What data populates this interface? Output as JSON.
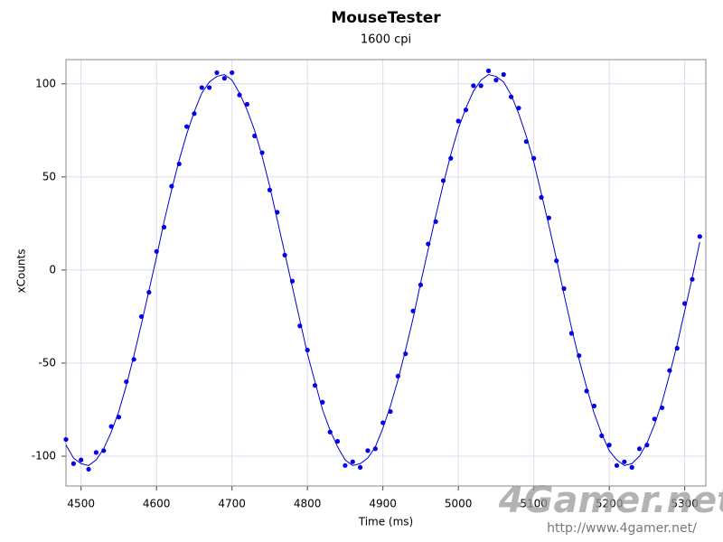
{
  "chart_data": {
    "type": "scatter",
    "title": "MouseTester",
    "subtitle": "1600 cpi",
    "x_label": "Time (ms)",
    "y_label": "xCounts",
    "x": [
      4480,
      4490,
      4500,
      4510,
      4520,
      4530,
      4540,
      4550,
      4560,
      4570,
      4580,
      4590,
      4600,
      4610,
      4620,
      4630,
      4640,
      4650,
      4660,
      4670,
      4680,
      4690,
      4700,
      4710,
      4720,
      4730,
      4740,
      4750,
      4760,
      4770,
      4780,
      4790,
      4800,
      4810,
      4820,
      4830,
      4840,
      4850,
      4860,
      4870,
      4880,
      4890,
      4900,
      4910,
      4920,
      4930,
      4940,
      4950,
      4960,
      4970,
      4980,
      4990,
      5000,
      5010,
      5020,
      5030,
      5040,
      5050,
      5060,
      5070,
      5080,
      5090,
      5100,
      5110,
      5120,
      5130,
      5140,
      5150,
      5160,
      5170,
      5180,
      5190,
      5200,
      5210,
      5220,
      5230,
      5240,
      5250,
      5260,
      5270,
      5280,
      5290,
      5300,
      5310,
      5320
    ],
    "series": [
      {
        "mode": "markers",
        "color": "#0000ee",
        "values": [
          -91,
          -104,
          -102,
          -107,
          -98,
          -97,
          -84,
          -79,
          -60,
          -48,
          -25,
          -12,
          10,
          23,
          45,
          57,
          77,
          84,
          98,
          98,
          106,
          103,
          106,
          94,
          89,
          72,
          63,
          43,
          31,
          8,
          -6,
          -30,
          -43,
          -62,
          -71,
          -87,
          -92,
          -105,
          -103,
          -106,
          -97,
          -96,
          -82,
          -76,
          -57,
          -45,
          -22,
          -8,
          14,
          26,
          48,
          60,
          80,
          86,
          99,
          99,
          107,
          102,
          105,
          93,
          87,
          69,
          60,
          39,
          28,
          5,
          -10,
          -34,
          -46,
          -65,
          -73,
          -89,
          -94,
          -105,
          -103,
          -106,
          -96,
          -94,
          -80,
          -74,
          -54,
          -42,
          -18,
          -5,
          18
        ]
      },
      {
        "mode": "line",
        "color": "#0000cc",
        "values": [
          -94,
          -101,
          -104,
          -105,
          -102,
          -96,
          -87,
          -76,
          -62,
          -46,
          -29,
          -11,
          7,
          26,
          43,
          59,
          73,
          85,
          95,
          101,
          104,
          105,
          102,
          95,
          86,
          75,
          61,
          45,
          27,
          9,
          -9,
          -27,
          -45,
          -60,
          -75,
          -86,
          -95,
          -102,
          -105,
          -104,
          -101,
          -95,
          -85,
          -73,
          -59,
          -43,
          -26,
          -7,
          11,
          29,
          46,
          62,
          76,
          87,
          96,
          102,
          105,
          104,
          101,
          94,
          84,
          72,
          58,
          41,
          24,
          6,
          -13,
          -31,
          -48,
          -63,
          -77,
          -88,
          -97,
          -102,
          -105,
          -104,
          -100,
          -93,
          -83,
          -71,
          -56,
          -40,
          -22,
          -4,
          15
        ]
      }
    ],
    "xlim": [
      4480,
      5328
    ],
    "ylim": [
      -116,
      113
    ],
    "xticks": [
      4500,
      4600,
      4700,
      4800,
      4900,
      5000,
      5100,
      5200,
      5300
    ],
    "yticks": [
      -100,
      -50,
      0,
      50,
      100
    ],
    "grid": true
  },
  "watermark": {
    "logo": "4Gamer.net",
    "url": "http://www.4gamer.net/"
  }
}
